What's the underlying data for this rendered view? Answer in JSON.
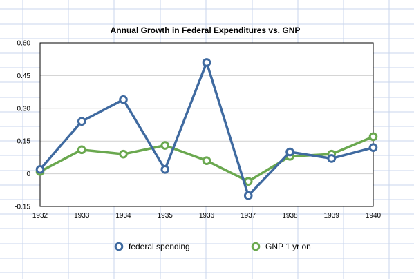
{
  "colors": {
    "sheet_background": "#ffffff",
    "sheet_grid_line": "#c9d6ec",
    "plot_background": "#ffffff",
    "plot_border": "#000000",
    "gridline": "#cfcfcf"
  },
  "chart_data": {
    "type": "line",
    "title": "Annual Growth in Federal Expenditures vs. GNP",
    "xlabel": "",
    "ylabel": "",
    "categories": [
      "1932",
      "1933",
      "1934",
      "1935",
      "1936",
      "1937",
      "1938",
      "1939",
      "1940"
    ],
    "y_ticks": [
      "0.60",
      "0.45",
      "0.30",
      "0.15",
      "0",
      "-0.15"
    ],
    "ylim": [
      -0.15,
      0.6
    ],
    "grid": true,
    "legend_position": "bottom",
    "series": [
      {
        "name": "federal spending",
        "color": "#3f6aa0",
        "values": [
          0.02,
          0.24,
          0.34,
          0.02,
          0.51,
          -0.1,
          0.1,
          0.07,
          0.12
        ]
      },
      {
        "name": "GNP 1 yr on",
        "color": "#6aa84f",
        "values": [
          0.01,
          0.11,
          0.09,
          0.13,
          0.06,
          -0.035,
          0.08,
          0.09,
          0.17
        ]
      }
    ]
  }
}
